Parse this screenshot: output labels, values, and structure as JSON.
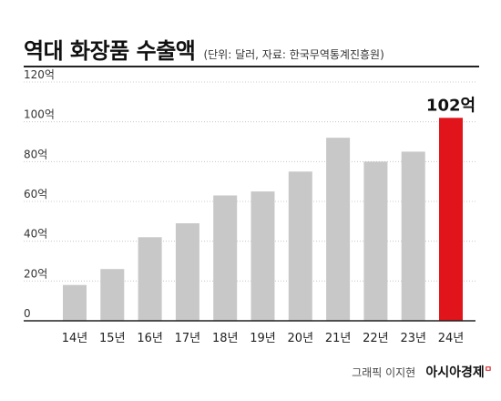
{
  "header": {
    "title": "역대 화장품 수출액",
    "subtitle": "(단위: 달러, 자료: 한국무역통계진흥원)"
  },
  "footer": {
    "credit": "그래픽 이지현",
    "brand": "아시아경제"
  },
  "colors": {
    "bar": "#c8c8c8",
    "highlight": "#e1141b",
    "baseline": "#222222",
    "grid": "#bdbdbd"
  },
  "chart_data": {
    "type": "bar",
    "categories": [
      "14년",
      "15년",
      "16년",
      "17년",
      "18년",
      "19년",
      "20년",
      "21년",
      "22년",
      "23년",
      "24년"
    ],
    "values": [
      18,
      26,
      42,
      49,
      63,
      65,
      75,
      92,
      80,
      85,
      102
    ],
    "yticks": [
      "0",
      "20억",
      "40억",
      "60억",
      "80억",
      "100억",
      "120억"
    ],
    "ylim": [
      0,
      120
    ],
    "highlight_index": 10,
    "highlight_label": "102억",
    "grid": true
  }
}
